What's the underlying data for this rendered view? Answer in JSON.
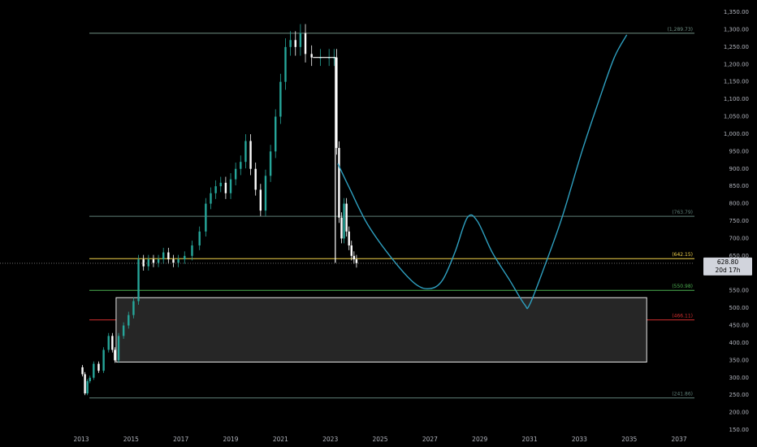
{
  "colors": {
    "background": "#000000",
    "axis_text": "#b2b5be",
    "candle_up": "#26a69a",
    "candle_down": "#ffffff",
    "projection": "#2e9fbf",
    "level_top": "#6f8f84",
    "level_mid": "#5f7f78",
    "level_yellow": "#f2d24b",
    "level_green": "#4caf50",
    "level_red": "#d32f2f",
    "level_bottom": "#5f7f78",
    "zone_fill": "#262626",
    "zone_border": "#e6e6e6",
    "price_line": "#7e7e7e"
  },
  "chart_data": {
    "type": "candlestick",
    "ylim": [
      150,
      1350
    ],
    "xlim": [
      2012.75,
      2038.0
    ],
    "y_ticks": [
      150,
      200,
      250,
      300,
      350,
      400,
      450,
      500,
      550,
      600,
      650,
      700,
      750,
      800,
      850,
      900,
      950,
      1000,
      1050,
      1100,
      1150,
      1200,
      1250,
      1300,
      1350
    ],
    "y_tick_labels": [
      "150.00",
      "200.00",
      "250.00",
      "300.00",
      "350.00",
      "400.00",
      "450.00",
      "500.00",
      "550.00",
      "600.00",
      "650.00",
      "700.00",
      "750.00",
      "800.00",
      "850.00",
      "900.00",
      "950.00",
      "1,000.00",
      "1,050.00",
      "1,100.00",
      "1,150.00",
      "1,200.00",
      "1,250.00",
      "1,300.00",
      "1,350.00"
    ],
    "x_ticks": [
      2013,
      2015,
      2017,
      2019,
      2021,
      2023,
      2025,
      2027,
      2029,
      2031,
      2033,
      2035,
      2037
    ],
    "x_tick_labels": [
      "2013",
      "2015",
      "2017",
      "2019",
      "2021",
      "2023",
      "2025",
      "2027",
      "2029",
      "2031",
      "2033",
      "2035",
      "2037"
    ],
    "price_path": [
      [
        2013.0,
        330
      ],
      [
        2013.1,
        310
      ],
      [
        2013.2,
        255
      ],
      [
        2013.3,
        290
      ],
      [
        2013.4,
        300
      ],
      [
        2013.6,
        340
      ],
      [
        2013.8,
        320
      ],
      [
        2014.0,
        380
      ],
      [
        2014.2,
        420
      ],
      [
        2014.3,
        380
      ],
      [
        2014.4,
        350
      ],
      [
        2014.6,
        420
      ],
      [
        2014.8,
        450
      ],
      [
        2015.0,
        480
      ],
      [
        2015.2,
        520
      ],
      [
        2015.4,
        640
      ],
      [
        2015.6,
        620
      ],
      [
        2015.8,
        640
      ],
      [
        2016.0,
        630
      ],
      [
        2016.2,
        640
      ],
      [
        2016.4,
        660
      ],
      [
        2016.6,
        640
      ],
      [
        2016.8,
        630
      ],
      [
        2017.0,
        640
      ],
      [
        2017.3,
        650
      ],
      [
        2017.6,
        680
      ],
      [
        2017.9,
        720
      ],
      [
        2018.1,
        800
      ],
      [
        2018.3,
        830
      ],
      [
        2018.5,
        850
      ],
      [
        2018.7,
        860
      ],
      [
        2018.9,
        830
      ],
      [
        2019.1,
        870
      ],
      [
        2019.3,
        900
      ],
      [
        2019.5,
        920
      ],
      [
        2019.7,
        980
      ],
      [
        2019.9,
        900
      ],
      [
        2020.1,
        840
      ],
      [
        2020.3,
        780
      ],
      [
        2020.5,
        880
      ],
      [
        2020.7,
        950
      ],
      [
        2020.9,
        1050
      ],
      [
        2021.1,
        1150
      ],
      [
        2021.3,
        1250
      ],
      [
        2021.5,
        1270
      ],
      [
        2021.7,
        1250
      ],
      [
        2021.9,
        1290
      ],
      [
        2022.1,
        1230
      ],
      [
        2022.4,
        1220
      ],
      [
        2022.8,
        1220
      ],
      [
        2023.1,
        1220
      ],
      [
        2023.2,
        1220
      ],
      [
        2023.3,
        960
      ],
      [
        2023.4,
        760
      ],
      [
        2023.5,
        700
      ],
      [
        2023.6,
        800
      ],
      [
        2023.7,
        720
      ],
      [
        2023.8,
        680
      ],
      [
        2023.9,
        650
      ],
      [
        2024.0,
        640
      ],
      [
        2024.1,
        628.8
      ]
    ],
    "projection_path": [
      [
        2023.3,
        915
      ],
      [
        2023.8,
        840
      ],
      [
        2024.5,
        740
      ],
      [
        2025.5,
        640
      ],
      [
        2026.4,
        570
      ],
      [
        2027.0,
        556
      ],
      [
        2027.5,
        580
      ],
      [
        2028.0,
        660
      ],
      [
        2028.5,
        760
      ],
      [
        2028.9,
        750
      ],
      [
        2029.5,
        660
      ],
      [
        2030.2,
        580
      ],
      [
        2030.8,
        510
      ],
      [
        2031.0,
        510
      ],
      [
        2031.6,
        620
      ],
      [
        2032.3,
        760
      ],
      [
        2033.1,
        950
      ],
      [
        2033.8,
        1100
      ],
      [
        2034.4,
        1220
      ],
      [
        2034.9,
        1285
      ]
    ],
    "levels": [
      {
        "value": 1289.73,
        "label": "(1,289.73)",
        "color_key": "level_top",
        "dashed": false
      },
      {
        "value": 763.79,
        "label": "(763.79)",
        "color_key": "level_mid",
        "dashed": false
      },
      {
        "value": 642.15,
        "label": "(642.15)",
        "color_key": "level_yellow",
        "dashed": false
      },
      {
        "value": 550.98,
        "label": "(550.98)",
        "color_key": "level_green",
        "dashed": false
      },
      {
        "value": 466.11,
        "label": "(466.11)",
        "color_key": "level_red",
        "dashed": false
      },
      {
        "value": 241.86,
        "label": "(241.86)",
        "color_key": "level_bottom",
        "dashed": false
      }
    ],
    "zone": {
      "x_start": 2014.4,
      "x_end": 2035.7,
      "y_top": 530,
      "y_bottom": 345
    },
    "current_price": {
      "value": 628.8,
      "label": "628.80",
      "countdown": "20d 17h"
    }
  }
}
